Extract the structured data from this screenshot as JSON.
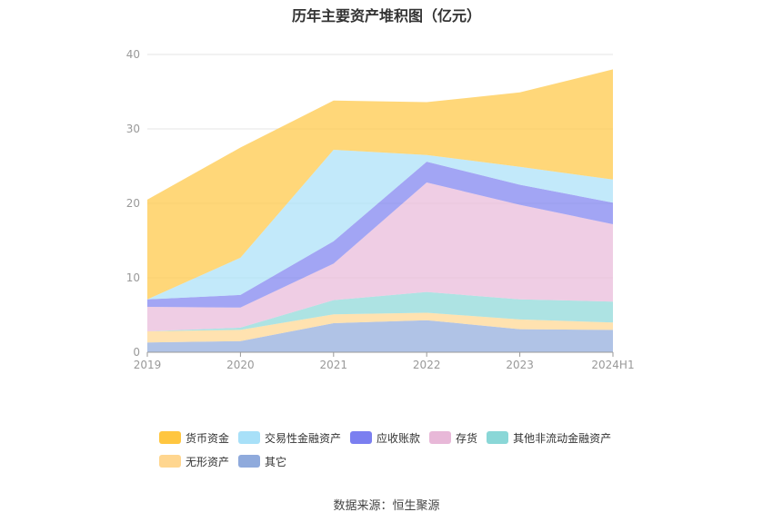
{
  "title": "历年主要资产堆积图（亿元）",
  "source": "数据来源：恒生聚源",
  "chart_data": {
    "type": "area",
    "stacked": true,
    "categories": [
      "2019",
      "2020",
      "2021",
      "2022",
      "2023",
      "2024H1"
    ],
    "ylim": [
      0,
      40
    ],
    "yticks": [
      0,
      10,
      20,
      30,
      40
    ],
    "grid": true,
    "legend_position": "bottom",
    "series": [
      {
        "name": "其它",
        "color": "#8faadc",
        "values": [
          1.3,
          1.5,
          3.9,
          4.3,
          3.1,
          3.0
        ]
      },
      {
        "name": "无形资产",
        "color": "#ffd68f",
        "values": [
          1.5,
          1.5,
          1.2,
          1.0,
          1.3,
          1.0
        ]
      },
      {
        "name": "其他非流动金融资产",
        "color": "#8ad7d7",
        "values": [
          0.0,
          0.3,
          1.9,
          2.8,
          2.7,
          2.8
        ]
      },
      {
        "name": "存货",
        "color": "#e8b8d8",
        "values": [
          3.3,
          2.7,
          4.9,
          14.7,
          12.7,
          10.4
        ]
      },
      {
        "name": "应收账款",
        "color": "#7b7ff0",
        "values": [
          1.0,
          1.7,
          3.0,
          2.8,
          2.7,
          2.9
        ]
      },
      {
        "name": "交易性金融资产",
        "color": "#a8e0f8",
        "values": [
          0.0,
          5.0,
          12.3,
          0.9,
          2.4,
          3.1
        ]
      },
      {
        "name": "货币资金",
        "color": "#ffc640",
        "values": [
          13.4,
          14.8,
          6.6,
          7.1,
          10.0,
          14.8
        ]
      }
    ]
  }
}
